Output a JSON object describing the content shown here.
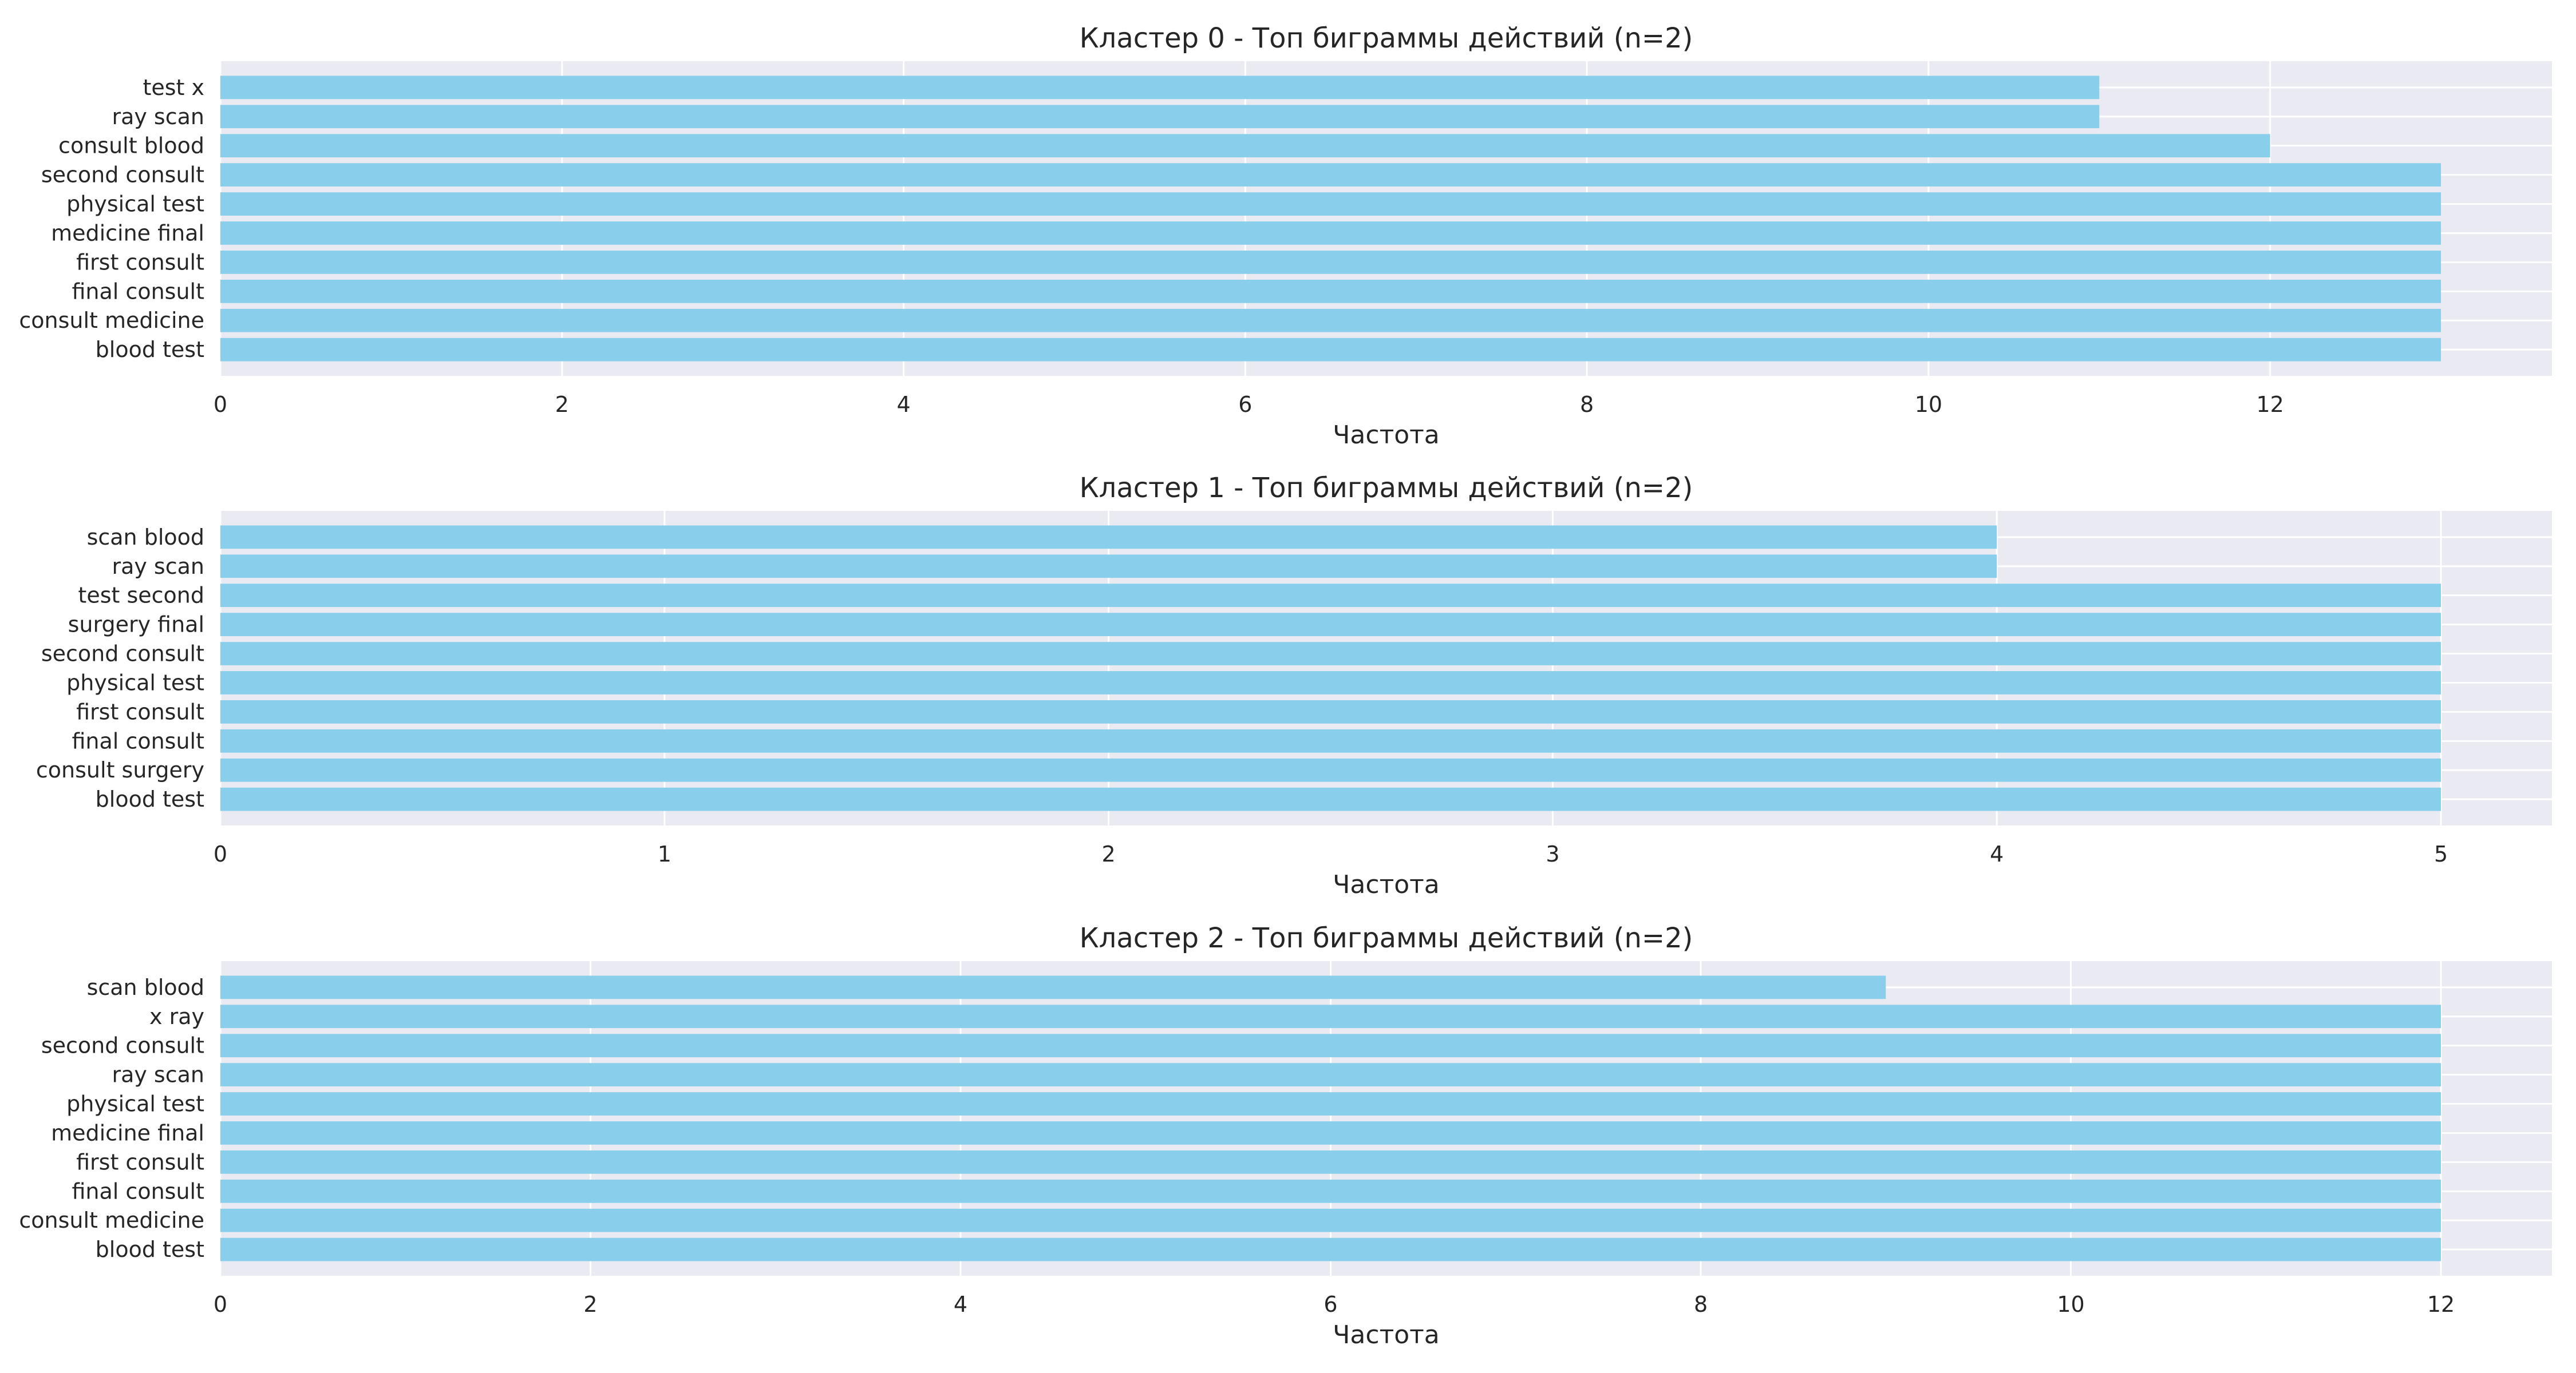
{
  "colors": {
    "bar": "#89CFEB",
    "plot_background": "#EAEAF2",
    "grid": "#FFFFFF",
    "text": "#262626"
  },
  "chart_data": [
    {
      "type": "bar",
      "orientation": "horizontal",
      "title": "Кластер 0 - Топ биграммы действий (n=2)",
      "xlabel": "Частота",
      "ylabel": "",
      "grid": true,
      "xlim": [
        0,
        13.65
      ],
      "xticks": [
        0,
        2,
        4,
        6,
        8,
        10,
        12
      ],
      "categories": [
        "blood test",
        "consult medicine",
        "final consult",
        "first consult",
        "medicine final",
        "physical test",
        "second consult",
        "consult blood",
        "ray scan",
        "test x"
      ],
      "values": [
        13,
        13,
        13,
        13,
        13,
        13,
        13,
        12,
        11,
        11
      ]
    },
    {
      "type": "bar",
      "orientation": "horizontal",
      "title": "Кластер 1 - Топ биграммы действий (n=2)",
      "xlabel": "Частота",
      "ylabel": "",
      "grid": true,
      "xlim": [
        0,
        5.25
      ],
      "xticks": [
        0,
        1,
        2,
        3,
        4,
        5
      ],
      "categories": [
        "blood test",
        "consult surgery",
        "final consult",
        "first consult",
        "physical test",
        "second consult",
        "surgery final",
        "test second",
        "ray scan",
        "scan blood"
      ],
      "values": [
        5,
        5,
        5,
        5,
        5,
        5,
        5,
        5,
        4,
        4
      ]
    },
    {
      "type": "bar",
      "orientation": "horizontal",
      "title": "Кластер 2 - Топ биграммы действий (n=2)",
      "xlabel": "Частота",
      "ylabel": "",
      "grid": true,
      "xlim": [
        0,
        12.6
      ],
      "xticks": [
        0,
        2,
        4,
        6,
        8,
        10,
        12
      ],
      "categories": [
        "blood test",
        "consult medicine",
        "final consult",
        "first consult",
        "medicine final",
        "physical test",
        "ray scan",
        "second consult",
        "x ray",
        "scan blood"
      ],
      "values": [
        12,
        12,
        12,
        12,
        12,
        12,
        12,
        12,
        12,
        9
      ]
    }
  ]
}
